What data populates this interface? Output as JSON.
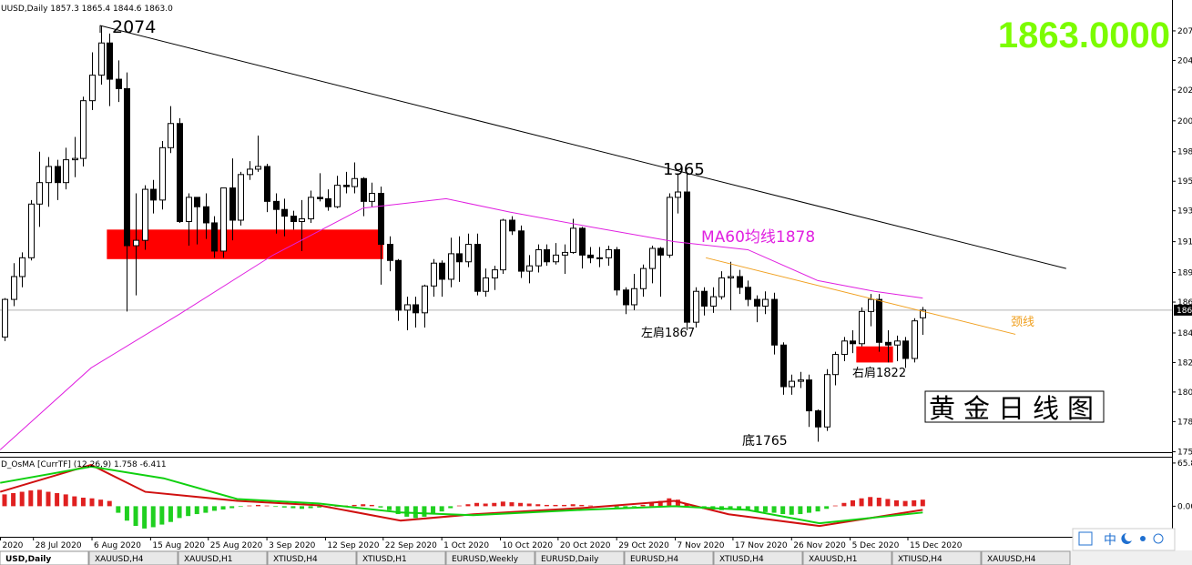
{
  "chart_data": [
    {
      "type": "candlestick",
      "title": "UUSD,Daily  1857.3 1865.4 1844.6 1863.0",
      "price_display": "1863.0000",
      "price_tag": "186",
      "xlim": [
        -0.52,
        133.5
      ],
      "ylim": [
        1757.2,
        2094
      ],
      "xticks": [
        {
          "value": -0.5,
          "label": "2020"
        },
        {
          "value": 3.3,
          "label": "28 Jul 2020"
        },
        {
          "value": 10,
          "label": "6 Aug 2020"
        },
        {
          "value": 16.7,
          "label": "15 Aug 2020"
        },
        {
          "value": 23.3,
          "label": "25 Aug 2020"
        },
        {
          "value": 30,
          "label": "3 Sep 2020"
        },
        {
          "value": 36.7,
          "label": "12 Sep 2020"
        },
        {
          "value": 43.3,
          "label": "22 Sep 2020"
        },
        {
          "value": 50,
          "label": "1 Oct 2020"
        },
        {
          "value": 56.7,
          "label": "10 Oct 2020"
        },
        {
          "value": 63.3,
          "label": "20 Oct 2020"
        },
        {
          "value": 70,
          "label": "29 Oct 2020"
        },
        {
          "value": 76.7,
          "label": "7 Nov 2020"
        },
        {
          "value": 83.3,
          "label": "17 Nov 2020"
        },
        {
          "value": 90,
          "label": "26 Nov 2020"
        },
        {
          "value": 96.7,
          "label": "5 Dec 2020"
        },
        {
          "value": 103.3,
          "label": "15 Dec 2020"
        }
      ],
      "yticks": [
        {
          "value": 2071,
          "label": "207"
        },
        {
          "value": 2049,
          "label": "204"
        },
        {
          "value": 2027,
          "label": "202"
        },
        {
          "value": 2004,
          "label": "200"
        },
        {
          "value": 1981,
          "label": "198"
        },
        {
          "value": 1959,
          "label": "195"
        },
        {
          "value": 1937,
          "label": "193"
        },
        {
          "value": 1914,
          "label": "191"
        },
        {
          "value": 1891,
          "label": "189"
        },
        {
          "value": 1869,
          "label": "186"
        },
        {
          "value": 1846,
          "label": "184"
        },
        {
          "value": 1824,
          "label": "182"
        },
        {
          "value": 1802,
          "label": "180"
        },
        {
          "value": 1780,
          "label": "178"
        },
        {
          "value": 1757.5,
          "label": "175"
        }
      ],
      "ohlc": [
        [
          1843,
          1872,
          1840,
          1871
        ],
        [
          1871,
          1898,
          1866,
          1888
        ],
        [
          1888,
          1906,
          1880,
          1902
        ],
        [
          1902,
          1945,
          1900,
          1942
        ],
        [
          1942,
          1981,
          1925,
          1958
        ],
        [
          1958,
          1977,
          1940,
          1970
        ],
        [
          1970,
          1975,
          1945,
          1958
        ],
        [
          1958,
          1984,
          1953,
          1975
        ],
        [
          1975,
          1992,
          1962,
          1976
        ],
        [
          1976,
          2022,
          1970,
          2019
        ],
        [
          2019,
          2055,
          2012,
          2038
        ],
        [
          2038,
          2075,
          2031,
          2062
        ],
        [
          2062,
          2069,
          2015,
          2035
        ],
        [
          2035,
          2049,
          2018,
          2028
        ],
        [
          2028,
          2040,
          1862,
          1911
        ],
        [
          1911,
          1950,
          1874,
          1915
        ],
        [
          1915,
          1956,
          1908,
          1953
        ],
        [
          1953,
          1960,
          1935,
          1945
        ],
        [
          1945,
          1989,
          1938,
          1984
        ],
        [
          1984,
          2015,
          1980,
          2002
        ],
        [
          2002,
          2006,
          1928,
          1929
        ],
        [
          1929,
          1950,
          1911,
          1947
        ],
        [
          1947,
          1947,
          1912,
          1940
        ],
        [
          1940,
          1950,
          1916,
          1928
        ],
        [
          1928,
          1933,
          1902,
          1907
        ],
        [
          1907,
          1954,
          1902,
          1954
        ],
        [
          1954,
          1976,
          1915,
          1930
        ],
        [
          1930,
          1966,
          1926,
          1964
        ],
        [
          1964,
          1974,
          1960,
          1968
        ],
        [
          1968,
          1993,
          1966,
          1970
        ],
        [
          1970,
          1972,
          1936,
          1944
        ],
        [
          1944,
          1950,
          1920,
          1938
        ],
        [
          1938,
          1946,
          1918,
          1933
        ],
        [
          1933,
          1937,
          1923,
          1929
        ],
        [
          1929,
          1945,
          1907,
          1931
        ],
        [
          1931,
          1952,
          1928,
          1947
        ],
        [
          1947,
          1965,
          1944,
          1946
        ],
        [
          1946,
          1953,
          1937,
          1940
        ],
        [
          1940,
          1963,
          1939,
          1956
        ],
        [
          1956,
          1966,
          1950,
          1955
        ],
        [
          1955,
          1973,
          1950,
          1961
        ],
        [
          1961,
          1962,
          1933,
          1944
        ],
        [
          1944,
          1958,
          1940,
          1950
        ],
        [
          1950,
          1955,
          1882,
          1912
        ],
        [
          1912,
          1918,
          1892,
          1900
        ],
        [
          1900,
          1901,
          1855,
          1863
        ],
        [
          1863,
          1873,
          1848,
          1867
        ],
        [
          1867,
          1873,
          1850,
          1861
        ],
        [
          1861,
          1882,
          1850,
          1881
        ],
        [
          1881,
          1901,
          1873,
          1898
        ],
        [
          1898,
          1900,
          1873,
          1886
        ],
        [
          1886,
          1917,
          1880,
          1905
        ],
        [
          1905,
          1918,
          1884,
          1899
        ],
        [
          1899,
          1920,
          1895,
          1912
        ],
        [
          1912,
          1920,
          1874,
          1877
        ],
        [
          1877,
          1894,
          1873,
          1887
        ],
        [
          1887,
          1896,
          1878,
          1893
        ],
        [
          1893,
          1931,
          1890,
          1930
        ],
        [
          1930,
          1933,
          1919,
          1922
        ],
        [
          1922,
          1926,
          1887,
          1892
        ],
        [
          1892,
          1904,
          1883,
          1896
        ],
        [
          1896,
          1912,
          1891,
          1908
        ],
        [
          1908,
          1912,
          1896,
          1899
        ],
        [
          1899,
          1913,
          1897,
          1904
        ],
        [
          1904,
          1912,
          1890,
          1906
        ],
        [
          1906,
          1931,
          1905,
          1924
        ],
        [
          1924,
          1925,
          1894,
          1904
        ],
        [
          1904,
          1910,
          1898,
          1902
        ],
        [
          1902,
          1910,
          1895,
          1902
        ],
        [
          1902,
          1911,
          1896,
          1908
        ],
        [
          1908,
          1910,
          1874,
          1878
        ],
        [
          1878,
          1880,
          1860,
          1867
        ],
        [
          1867,
          1890,
          1863,
          1879
        ],
        [
          1879,
          1897,
          1873,
          1894
        ],
        [
          1894,
          1911,
          1883,
          1909
        ],
        [
          1909,
          1910,
          1873,
          1904
        ],
        [
          1904,
          1950,
          1902,
          1947
        ],
        [
          1947,
          1965,
          1935,
          1951
        ],
        [
          1951,
          1966,
          1848,
          1854
        ],
        [
          1854,
          1880,
          1850,
          1877
        ],
        [
          1877,
          1880,
          1859,
          1866
        ],
        [
          1866,
          1880,
          1861,
          1873
        ],
        [
          1873,
          1892,
          1871,
          1887
        ],
        [
          1887,
          1899,
          1863,
          1888
        ],
        [
          1888,
          1893,
          1875,
          1880
        ],
        [
          1880,
          1885,
          1866,
          1871
        ],
        [
          1871,
          1874,
          1854,
          1866
        ],
        [
          1866,
          1877,
          1860,
          1871
        ],
        [
          1871,
          1876,
          1830,
          1837
        ],
        [
          1837,
          1839,
          1800,
          1806
        ],
        [
          1806,
          1815,
          1800,
          1810
        ],
        [
          1810,
          1817,
          1805,
          1811
        ],
        [
          1811,
          1815,
          1776,
          1788
        ],
        [
          1788,
          1789,
          1765,
          1776
        ],
        [
          1776,
          1819,
          1773,
          1815
        ],
        [
          1815,
          1832,
          1807,
          1830
        ],
        [
          1830,
          1843,
          1825,
          1840
        ],
        [
          1840,
          1848,
          1831,
          1838
        ],
        [
          1838,
          1865,
          1836,
          1862
        ],
        [
          1862,
          1875,
          1851,
          1871
        ],
        [
          1871,
          1875,
          1832,
          1839
        ],
        [
          1839,
          1848,
          1824,
          1837
        ],
        [
          1837,
          1844,
          1825,
          1840
        ],
        [
          1840,
          1843,
          1820,
          1827
        ],
        [
          1827,
          1857,
          1824,
          1855
        ],
        [
          1857.3,
          1865.4,
          1844.6,
          1863.0
        ]
      ],
      "ma": {
        "color": "#e020e0",
        "x": [
          -0.5,
          9.9,
          20,
          30.7,
          41,
          50.5,
          57.8,
          67,
          76.6,
          85,
          93,
          99.5,
          105
        ],
        "values": [
          1759,
          1820,
          1860,
          1904,
          1939,
          1946,
          1936,
          1925,
          1914,
          1908,
          1885,
          1877,
          1872
        ]
      },
      "trendlines": [
        {
          "color": "#000000",
          "x": [
            10.9,
            121.4
          ],
          "values": [
            2075,
            1894
          ]
        },
        {
          "color": "#f0a020",
          "x": [
            80.2,
            115.6
          ],
          "values": [
            1902,
            1845
          ]
        }
      ],
      "zones": [
        {
          "color": "#ff0000",
          "x": [
            11.7,
            43.3
          ],
          "values": [
            1923,
            1901
          ]
        },
        {
          "color": "#ff0000",
          "x": [
            97.4,
            101.6
          ],
          "values": [
            1836,
            1824
          ]
        }
      ],
      "annotations": [
        "2074",
        "1965",
        "MA60均线1878",
        "左肩1867",
        "右肩1822",
        "底1765",
        "颈线",
        "黄金日线图"
      ]
    },
    {
      "type": "osma",
      "title": "D_OsMA [CurrTF] (12,26,9) 1.758 -6.411",
      "ylim": [
        -46.6,
        74.0
      ],
      "yticks": [
        65.8,
        {
          "value": 0,
          "label": "0.00"
        }
      ],
      "up_color": "#e02020",
      "down_color": "#20d020",
      "values": [
        18,
        20,
        22,
        24,
        25,
        22,
        20,
        18,
        15,
        13,
        12,
        10,
        8,
        -10,
        -22,
        -30,
        -34,
        -32,
        -28,
        -24,
        -18,
        -15,
        -12,
        -10,
        -7,
        -5,
        -3,
        -1,
        1,
        2,
        1,
        -1,
        -2,
        -3,
        -4,
        -3,
        -2,
        -1,
        0,
        1,
        2,
        3,
        2,
        -2,
        -6,
        -12,
        -16,
        -18,
        -16,
        -12,
        -8,
        -3,
        1,
        3,
        5,
        4,
        5,
        7,
        6,
        5,
        4,
        3,
        2,
        2,
        2,
        3,
        2,
        1,
        0,
        -1,
        -2,
        -2,
        -1,
        2,
        5,
        8,
        12,
        10,
        4,
        -2,
        -4,
        -5,
        -6,
        -5,
        -6,
        -7,
        -8,
        -9,
        -10,
        -12,
        -13,
        -12,
        -10,
        -8,
        -4,
        1,
        5,
        9,
        12,
        14,
        13,
        11,
        9,
        8,
        9,
        10
      ],
      "lines": [
        {
          "color": "#d01010",
          "x": [
            -0.5,
            9.9,
            16.1,
            26.6,
            35.9,
            45.3,
            53.6,
            66.1,
            76.6,
            82.8,
            93.2,
            105
          ],
          "values": [
            21.9,
            63.0,
            21.9,
            8.2,
            1.4,
            -21.9,
            -12.3,
            -2.7,
            8.2,
            -12.3,
            -30.1,
            -5.5
          ]
        },
        {
          "color": "#10d010",
          "x": [
            -0.5,
            9.9,
            18.2,
            26.6,
            35.9,
            45.3,
            53.6,
            66.1,
            76.6,
            84.9,
            93.2,
            105
          ],
          "values": [
            35.6,
            60.3,
            42.5,
            11.0,
            4.1,
            -9.6,
            -13.7,
            -5.5,
            0,
            -5.5,
            -26.0,
            -9.6
          ]
        }
      ]
    }
  ],
  "tabs": [
    "USD,Daily",
    "XAUUSD,H4",
    "XAUUSD,H1",
    "XTIUSD,H4",
    "XTIUSD,H1",
    "EURUSD,Weekly",
    "EURUSD,Daily",
    "EURUSD,H4",
    "XTIUSD,H4",
    "XAUUSD,H1",
    "XTIUSD,H4",
    "XAUUSD,H4"
  ],
  "toolbar": {
    "lang": "中"
  }
}
